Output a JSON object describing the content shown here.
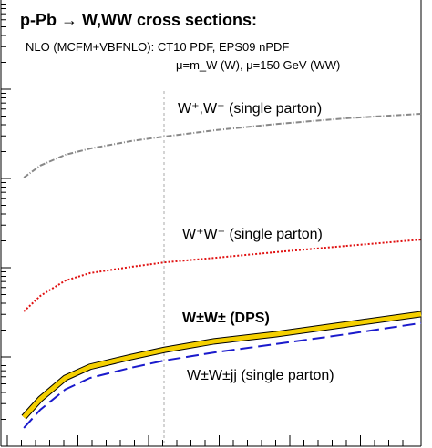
{
  "chart_data": {
    "type": "line",
    "title": "p-Pb → W,WW cross sections:",
    "annotations": [
      "NLO (MCFM+VBFNLO): CT10 PDF, EPS09 nPDF",
      "μ=m_W (W), μ=150 GeV (WW)"
    ],
    "x": [
      4,
      8,
      14,
      20,
      30,
      38,
      50,
      65,
      82,
      100
    ],
    "xlim": [
      0,
      100
    ],
    "ylim": [
      0,
      100
    ],
    "series": [
      {
        "name": "W⁺,W⁻ (single parton)",
        "color": "#888888",
        "dash": "dashdot",
        "values": [
          60.2,
          62.9,
          65.3,
          66.7,
          68.4,
          69.4,
          70.8,
          72.2,
          73.5,
          74.5
        ]
      },
      {
        "name": "W⁺W⁻ (single parton)",
        "color": "#e01010",
        "dash": "dotted",
        "values": [
          30.2,
          33.7,
          37.1,
          38.8,
          40.2,
          41.2,
          42.2,
          43.5,
          44.9,
          46.3
        ]
      },
      {
        "name": "W±W± (DPS)",
        "color": "#f5d000",
        "dash": "band",
        "values": [
          6.5,
          10.6,
          15.3,
          17.8,
          20,
          21.6,
          23.5,
          25.1,
          27.3,
          29.6
        ]
      },
      {
        "name": "W±W±jj (single parton)",
        "color": "#1a1acc",
        "dash": "dashed",
        "values": [
          4.1,
          8.2,
          12.7,
          15.3,
          17.6,
          19.2,
          21,
          22.9,
          25.1,
          27.6
        ]
      }
    ]
  }
}
